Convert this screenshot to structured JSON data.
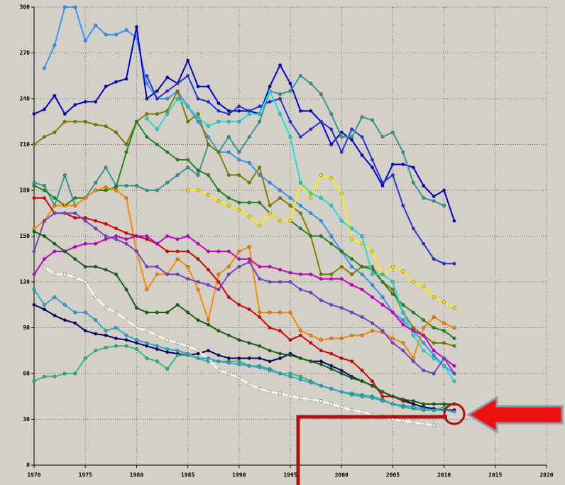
{
  "chart_data": {
    "type": "line",
    "x": [
      1970,
      1971,
      1972,
      1973,
      1974,
      1975,
      1976,
      1977,
      1978,
      1979,
      1980,
      1981,
      1982,
      1983,
      1984,
      1985,
      1986,
      1987,
      1988,
      1989,
      1990,
      1991,
      1992,
      1993,
      1994,
      1995,
      1996,
      1997,
      1998,
      1999,
      2000,
      2001,
      2002,
      2003,
      2004,
      2005,
      2006,
      2007,
      2008,
      2009,
      2010,
      2011
    ],
    "xlim": [
      1970,
      2020
    ],
    "xticks": [
      1970,
      1975,
      1980,
      1985,
      1990,
      1995,
      2000,
      2005,
      2010,
      2015,
      2020
    ],
    "ylim": [
      0,
      300
    ],
    "yticks": [
      0,
      30,
      60,
      90,
      120,
      150,
      180,
      210,
      240,
      270,
      300
    ],
    "grid": true,
    "series": [
      {
        "color": "#3399ff",
        "values": [
          null,
          260,
          275,
          300,
          300,
          278,
          288,
          282,
          282,
          285,
          280,
          250,
          240,
          240,
          245,
          235,
          225,
          215,
          205,
          205,
          200,
          198,
          190,
          185,
          180,
          175,
          170,
          165,
          160,
          150,
          140,
          130,
          125,
          118,
          110,
          100,
          95,
          88,
          80,
          72,
          65,
          60
        ]
      },
      {
        "color": "#0000cc",
        "values": [
          230,
          233,
          242,
          230,
          236,
          238,
          238,
          248,
          251,
          253,
          287,
          240,
          245,
          254,
          250,
          265,
          248,
          248,
          237,
          232,
          232,
          232,
          230,
          248,
          262,
          250,
          232,
          232,
          225,
          210,
          218,
          213,
          203,
          195,
          183,
          197,
          197,
          195,
          183,
          176,
          180,
          160
        ]
      },
      {
        "color": "#2233dd",
        "values": [
          null,
          null,
          null,
          null,
          null,
          null,
          null,
          null,
          null,
          null,
          null,
          255,
          240,
          245,
          250,
          255,
          240,
          238,
          232,
          230,
          235,
          232,
          235,
          238,
          240,
          225,
          215,
          220,
          225,
          220,
          205,
          220,
          215,
          200,
          185,
          190,
          170,
          155,
          145,
          135,
          132,
          132
        ]
      },
      {
        "color": "#339999",
        "values": [
          185,
          183,
          170,
          190,
          170,
          175,
          185,
          195,
          183,
          183,
          183,
          180,
          180,
          185,
          190,
          195,
          190,
          210,
          205,
          215,
          205,
          215,
          225,
          245,
          243,
          245,
          255,
          250,
          243,
          230,
          215,
          215,
          228,
          226,
          215,
          218,
          205,
          185,
          175,
          173,
          170,
          null
        ]
      },
      {
        "color": "#808000",
        "values": [
          210,
          215,
          218,
          225,
          225,
          225,
          223,
          222,
          218,
          210,
          225,
          230,
          230,
          232,
          245,
          225,
          230,
          210,
          205,
          190,
          190,
          185,
          195,
          170,
          175,
          170,
          165,
          150,
          125,
          125,
          130,
          125,
          130,
          130,
          120,
          115,
          100,
          90,
          85,
          80,
          80,
          78
        ]
      },
      {
        "color": "#228822",
        "values": [
          183,
          180,
          175,
          170,
          175,
          175,
          180,
          180,
          182,
          205,
          225,
          215,
          210,
          205,
          200,
          200,
          193,
          190,
          180,
          175,
          172,
          172,
          172,
          165,
          160,
          160,
          155,
          150,
          150,
          145,
          140,
          135,
          130,
          128,
          120,
          112,
          105,
          100,
          95,
          90,
          88,
          83
        ]
      },
      {
        "color": "#ffee00",
        "values": [
          null,
          null,
          null,
          null,
          null,
          null,
          null,
          null,
          null,
          null,
          null,
          null,
          null,
          null,
          null,
          180,
          180,
          177,
          173,
          170,
          167,
          163,
          157,
          165,
          160,
          160,
          185,
          175,
          190,
          188,
          178,
          148,
          145,
          140,
          125,
          130,
          127,
          120,
          117,
          110,
          107,
          103
        ]
      },
      {
        "color": "#22dddd",
        "values": [
          null,
          null,
          null,
          null,
          null,
          null,
          null,
          null,
          null,
          null,
          null,
          227,
          220,
          230,
          240,
          235,
          228,
          222,
          225,
          225,
          225,
          230,
          230,
          245,
          230,
          215,
          185,
          178,
          175,
          170,
          160,
          155,
          150,
          125,
          125,
          120,
          100,
          85,
          75,
          70,
          65,
          55
        ]
      },
      {
        "color": "#ff8800",
        "values": [
          155,
          160,
          170,
          170,
          170,
          175,
          180,
          182,
          180,
          175,
          140,
          115,
          125,
          125,
          135,
          130,
          115,
          95,
          125,
          130,
          140,
          143,
          100,
          100,
          100,
          100,
          88,
          85,
          82,
          83,
          83,
          85,
          85,
          88,
          87,
          83,
          80,
          70,
          90,
          97,
          93,
          90
        ]
      },
      {
        "color": "#dd0000",
        "values": [
          175,
          175,
          165,
          165,
          162,
          162,
          160,
          158,
          155,
          152,
          150,
          148,
          145,
          140,
          140,
          140,
          135,
          128,
          120,
          110,
          105,
          102,
          97,
          90,
          88,
          82,
          85,
          80,
          75,
          73,
          70,
          68,
          62,
          55,
          45,
          45,
          42,
          40,
          38,
          37,
          36,
          36
        ]
      },
      {
        "color": "#cc00cc",
        "values": [
          125,
          135,
          140,
          140,
          143,
          145,
          145,
          148,
          150,
          148,
          150,
          150,
          145,
          150,
          148,
          150,
          145,
          140,
          140,
          140,
          135,
          135,
          130,
          130,
          128,
          126,
          125,
          125,
          122,
          122,
          122,
          118,
          115,
          110,
          105,
          100,
          92,
          88,
          85,
          75,
          70,
          65
        ]
      },
      {
        "color": "#7744cc",
        "values": [
          140,
          160,
          165,
          165,
          165,
          160,
          155,
          150,
          148,
          145,
          140,
          130,
          130,
          125,
          125,
          122,
          120,
          118,
          115,
          125,
          130,
          133,
          122,
          120,
          120,
          120,
          115,
          113,
          108,
          105,
          103,
          100,
          97,
          93,
          88,
          80,
          75,
          68,
          62,
          60,
          70,
          60
        ]
      },
      {
        "color": "#000066",
        "values": [
          105,
          102,
          98,
          95,
          93,
          88,
          86,
          85,
          83,
          82,
          80,
          78,
          76,
          74,
          73,
          72,
          73,
          75,
          72,
          70,
          70,
          70,
          70,
          68,
          70,
          73,
          70,
          68,
          68,
          65,
          62,
          58,
          55,
          52,
          48,
          45,
          43,
          40,
          38,
          37,
          36,
          36
        ]
      },
      {
        "color": "#33bb88",
        "values": [
          55,
          58,
          58,
          60,
          60,
          70,
          75,
          77,
          78,
          78,
          76,
          70,
          68,
          63,
          72,
          72,
          70,
          68,
          68,
          68,
          68,
          65,
          65,
          63,
          60,
          60,
          58,
          55,
          52,
          50,
          48,
          47,
          46,
          45,
          43,
          40,
          38,
          37,
          36,
          36,
          38,
          40
        ]
      },
      {
        "color": "#ffffff",
        "values": [
          null,
          130,
          125,
          125,
          123,
          120,
          110,
          103,
          100,
          95,
          90,
          88,
          85,
          82,
          80,
          78,
          75,
          70,
          62,
          60,
          57,
          53,
          50,
          48,
          47,
          45,
          44,
          43,
          42,
          40,
          38,
          36,
          35,
          33,
          32,
          30,
          29,
          28,
          27,
          26,
          null,
          null
        ]
      },
      {
        "color": "#116611",
        "values": [
          153,
          150,
          145,
          140,
          135,
          130,
          130,
          128,
          125,
          115,
          103,
          100,
          100,
          100,
          105,
          100,
          95,
          92,
          88,
          85,
          82,
          80,
          78,
          75,
          73,
          72,
          70,
          68,
          66,
          63,
          60,
          57,
          55,
          52,
          48,
          45,
          43,
          42,
          40,
          40,
          40,
          40
        ]
      },
      {
        "color": "#33aacc",
        "values": [
          115,
          105,
          110,
          105,
          100,
          100,
          95,
          88,
          90,
          85,
          82,
          80,
          78,
          76,
          75,
          73,
          70,
          70,
          68,
          67,
          66,
          65,
          64,
          62,
          60,
          58,
          56,
          54,
          52,
          50,
          48,
          46,
          45,
          44,
          42,
          40,
          39,
          38,
          37,
          36,
          36,
          35
        ]
      }
    ]
  }
}
